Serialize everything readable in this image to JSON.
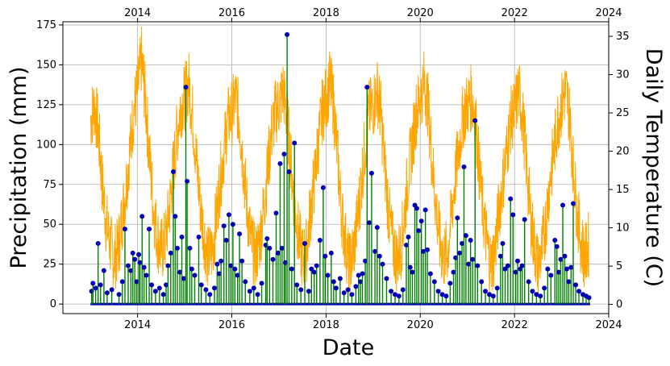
{
  "chart_data": {
    "type": "line",
    "xlabel": "Date",
    "ylabel": "Precipitation (mm)",
    "y2label": "Daily Temperature (C)",
    "x_axis_kind": "date",
    "xlim": [
      "2012-06-01",
      "2024-01-01"
    ],
    "ylim": [
      -6,
      177
    ],
    "y2lim": [
      -1.2,
      36.9
    ],
    "grid": true,
    "x_ticks": [
      "2014",
      "2016",
      "2018",
      "2020",
      "2022",
      "2024"
    ],
    "x_top_ticks": [
      "2014",
      "2016",
      "2018",
      "2020",
      "2022",
      "2024"
    ],
    "y_ticks": [
      "0",
      "25",
      "50",
      "75",
      "100",
      "125",
      "150",
      "175"
    ],
    "y2_ticks": [
      "0",
      "5",
      "10",
      "15",
      "20",
      "25",
      "30",
      "35"
    ],
    "colors": {
      "precipitation_stem": "#008000",
      "precipitation_marker": "#0000b4",
      "temperature": "#ffa500"
    },
    "series": [
      {
        "kind": "temperature-line",
        "axis": "y2",
        "x": [
          "2013-01-01",
          "2013-02-01",
          "2013-03-01",
          "2013-04-01",
          "2013-05-01",
          "2013-06-01",
          "2013-07-01",
          "2013-08-01",
          "2013-09-01",
          "2013-10-01",
          "2013-11-01",
          "2013-12-01",
          "2014-01-01",
          "2014-02-01",
          "2014-03-01",
          "2014-04-01",
          "2014-05-01",
          "2014-06-01",
          "2014-07-01",
          "2014-08-01",
          "2014-09-01",
          "2014-10-01",
          "2014-11-01",
          "2014-12-01",
          "2015-01-01",
          "2015-02-01",
          "2015-03-01",
          "2015-04-01",
          "2015-05-01",
          "2015-06-01",
          "2015-07-01",
          "2015-08-01",
          "2015-09-01",
          "2015-10-01",
          "2015-11-01",
          "2015-12-01",
          "2016-01-01",
          "2016-02-01",
          "2016-03-01",
          "2016-04-01",
          "2016-05-01",
          "2016-06-01",
          "2016-07-01",
          "2016-08-01",
          "2016-09-01",
          "2016-10-01",
          "2016-11-01",
          "2016-12-01",
          "2017-01-01",
          "2017-02-01",
          "2017-03-01",
          "2017-04-01",
          "2017-05-01",
          "2017-06-01",
          "2017-07-01",
          "2017-08-01",
          "2017-09-01",
          "2017-10-01",
          "2017-11-01",
          "2017-12-01",
          "2018-01-01",
          "2018-02-01",
          "2018-03-01",
          "2018-04-01",
          "2018-05-01",
          "2018-06-01",
          "2018-07-01",
          "2018-08-01",
          "2018-09-01",
          "2018-10-01",
          "2018-11-01",
          "2018-12-01",
          "2019-01-01",
          "2019-02-01",
          "2019-03-01",
          "2019-04-01",
          "2019-05-01",
          "2019-06-01",
          "2019-07-01",
          "2019-08-01",
          "2019-09-01",
          "2019-10-01",
          "2019-11-01",
          "2019-12-01",
          "2020-01-01",
          "2020-02-01",
          "2020-03-01",
          "2020-04-01",
          "2020-05-01",
          "2020-06-01",
          "2020-07-01",
          "2020-08-01",
          "2020-09-01",
          "2020-10-01",
          "2020-11-01",
          "2020-12-01",
          "2021-01-01",
          "2021-02-01",
          "2021-03-01",
          "2021-04-01",
          "2021-05-01",
          "2021-06-01",
          "2021-07-01",
          "2021-08-01",
          "2021-09-01",
          "2021-10-01",
          "2021-11-01",
          "2021-12-01",
          "2022-01-01",
          "2022-02-01",
          "2022-03-01",
          "2022-04-01",
          "2022-05-01",
          "2022-06-01",
          "2022-07-01",
          "2022-08-01",
          "2022-09-01",
          "2022-10-01",
          "2022-11-01",
          "2022-12-01",
          "2023-01-01",
          "2023-02-01",
          "2023-03-01",
          "2023-04-01",
          "2023-05-01",
          "2023-06-01",
          "2023-07-01",
          "2023-08-01"
        ],
        "values": [
          24,
          26,
          23,
          16,
          11,
          8,
          6,
          7,
          11,
          15,
          20,
          25,
          28,
          32,
          27,
          20,
          13,
          9,
          7,
          8,
          12,
          17,
          22,
          26,
          27,
          29,
          25,
          19,
          13,
          9,
          6,
          7,
          11,
          16,
          20,
          24,
          25,
          27,
          24,
          18,
          12,
          8,
          6,
          8,
          12,
          17,
          22,
          25,
          26,
          28,
          25,
          19,
          13,
          9,
          6,
          7,
          12,
          16,
          21,
          25,
          27,
          29,
          26,
          19,
          12,
          8,
          5,
          7,
          11,
          16,
          21,
          25,
          26,
          28,
          25,
          18,
          12,
          8,
          6,
          7,
          12,
          17,
          21,
          25,
          27,
          29,
          26,
          19,
          13,
          8,
          6,
          7,
          12,
          17,
          21,
          25,
          26,
          27,
          25,
          18,
          12,
          8,
          5,
          7,
          12,
          16,
          20,
          24,
          25,
          28,
          25,
          19,
          12,
          8,
          5,
          7,
          11,
          16,
          20,
          24,
          26,
          28,
          25,
          18,
          12,
          8,
          6,
          8
        ]
      },
      {
        "kind": "precipitation-stems",
        "axis": "y",
        "points": [
          [
            "2013-01-10",
            8
          ],
          [
            "2013-01-20",
            13
          ],
          [
            "2013-02-10",
            10
          ],
          [
            "2013-03-01",
            38
          ],
          [
            "2013-03-20",
            12
          ],
          [
            "2013-04-15",
            21
          ],
          [
            "2013-05-10",
            7
          ],
          [
            "2013-06-15",
            9
          ],
          [
            "2013-08-10",
            6
          ],
          [
            "2013-09-05",
            14
          ],
          [
            "2013-09-25",
            47
          ],
          [
            "2013-10-20",
            24
          ],
          [
            "2013-11-10",
            21
          ],
          [
            "2013-11-25",
            32
          ],
          [
            "2013-12-10",
            28
          ],
          [
            "2013-12-25",
            14
          ],
          [
            "2014-01-10",
            31
          ],
          [
            "2014-01-20",
            26
          ],
          [
            "2014-02-05",
            55
          ],
          [
            "2014-02-20",
            23
          ],
          [
            "2014-03-10",
            18
          ],
          [
            "2014-04-01",
            47
          ],
          [
            "2014-04-20",
            12
          ],
          [
            "2014-05-20",
            8
          ],
          [
            "2014-06-20",
            10
          ],
          [
            "2014-07-20",
            6
          ],
          [
            "2014-08-10",
            12
          ],
          [
            "2014-08-25",
            24
          ],
          [
            "2014-09-15",
            32
          ],
          [
            "2014-10-05",
            83
          ],
          [
            "2014-10-20",
            55
          ],
          [
            "2014-11-05",
            35
          ],
          [
            "2014-11-25",
            20
          ],
          [
            "2014-12-10",
            42
          ],
          [
            "2014-12-25",
            16
          ],
          [
            "2015-01-10",
            136
          ],
          [
            "2015-01-20",
            77
          ],
          [
            "2015-02-10",
            35
          ],
          [
            "2015-02-25",
            22
          ],
          [
            "2015-03-20",
            18
          ],
          [
            "2015-04-20",
            42
          ],
          [
            "2015-05-10",
            12
          ],
          [
            "2015-06-15",
            9
          ],
          [
            "2015-07-15",
            6
          ],
          [
            "2015-08-20",
            10
          ],
          [
            "2015-09-10",
            25
          ],
          [
            "2015-09-25",
            19
          ],
          [
            "2015-10-10",
            27
          ],
          [
            "2015-11-01",
            49
          ],
          [
            "2015-11-20",
            40
          ],
          [
            "2015-12-10",
            56
          ],
          [
            "2015-12-25",
            24
          ],
          [
            "2016-01-10",
            50
          ],
          [
            "2016-01-25",
            22
          ],
          [
            "2016-02-15",
            18
          ],
          [
            "2016-03-01",
            44
          ],
          [
            "2016-03-20",
            27
          ],
          [
            "2016-04-15",
            14
          ],
          [
            "2016-05-20",
            8
          ],
          [
            "2016-06-20",
            10
          ],
          [
            "2016-07-20",
            6
          ],
          [
            "2016-08-20",
            13
          ],
          [
            "2016-09-20",
            37
          ],
          [
            "2016-10-01",
            41
          ],
          [
            "2016-10-20",
            35
          ],
          [
            "2016-11-15",
            28
          ],
          [
            "2016-12-10",
            57
          ],
          [
            "2016-12-25",
            32
          ],
          [
            "2017-01-10",
            88
          ],
          [
            "2017-01-25",
            35
          ],
          [
            "2017-02-10",
            94
          ],
          [
            "2017-02-20",
            26
          ],
          [
            "2017-03-05",
            169
          ],
          [
            "2017-03-20",
            83
          ],
          [
            "2017-04-10",
            22
          ],
          [
            "2017-05-01",
            101
          ],
          [
            "2017-05-20",
            12
          ],
          [
            "2017-06-20",
            9
          ],
          [
            "2017-07-20",
            38
          ],
          [
            "2017-08-20",
            8
          ],
          [
            "2017-09-10",
            22
          ],
          [
            "2017-10-01",
            20
          ],
          [
            "2017-10-20",
            24
          ],
          [
            "2017-11-15",
            40
          ],
          [
            "2017-12-10",
            73
          ],
          [
            "2017-12-25",
            30
          ],
          [
            "2018-01-15",
            18
          ],
          [
            "2018-02-10",
            32
          ],
          [
            "2018-03-01",
            14
          ],
          [
            "2018-03-20",
            10
          ],
          [
            "2018-04-20",
            16
          ],
          [
            "2018-05-20",
            7
          ],
          [
            "2018-06-20",
            9
          ],
          [
            "2018-07-20",
            6
          ],
          [
            "2018-08-20",
            11
          ],
          [
            "2018-09-10",
            18
          ],
          [
            "2018-09-25",
            14
          ],
          [
            "2018-10-10",
            19
          ],
          [
            "2018-11-01",
            27
          ],
          [
            "2018-11-15",
            136
          ],
          [
            "2018-12-01",
            51
          ],
          [
            "2018-12-20",
            82
          ],
          [
            "2019-01-15",
            33
          ],
          [
            "2019-02-01",
            48
          ],
          [
            "2019-02-20",
            30
          ],
          [
            "2019-03-15",
            25
          ],
          [
            "2019-04-15",
            16
          ],
          [
            "2019-05-20",
            8
          ],
          [
            "2019-06-20",
            6
          ],
          [
            "2019-07-20",
            5
          ],
          [
            "2019-08-20",
            9
          ],
          [
            "2019-09-15",
            37
          ],
          [
            "2019-10-01",
            42
          ],
          [
            "2019-10-15",
            23
          ],
          [
            "2019-11-01",
            20
          ],
          [
            "2019-11-20",
            62
          ],
          [
            "2019-12-05",
            60
          ],
          [
            "2019-12-20",
            46
          ],
          [
            "2020-01-10",
            52
          ],
          [
            "2020-01-25",
            33
          ],
          [
            "2020-02-10",
            59
          ],
          [
            "2020-02-25",
            34
          ],
          [
            "2020-03-20",
            19
          ],
          [
            "2020-04-20",
            14
          ],
          [
            "2020-05-20",
            8
          ],
          [
            "2020-06-20",
            6
          ],
          [
            "2020-07-20",
            5
          ],
          [
            "2020-08-20",
            13
          ],
          [
            "2020-09-15",
            20
          ],
          [
            "2020-10-01",
            29
          ],
          [
            "2020-10-15",
            54
          ],
          [
            "2020-11-01",
            32
          ],
          [
            "2020-11-20",
            38
          ],
          [
            "2020-12-05",
            86
          ],
          [
            "2020-12-20",
            43
          ],
          [
            "2021-01-10",
            25
          ],
          [
            "2021-01-25",
            40
          ],
          [
            "2021-02-10",
            28
          ],
          [
            "2021-03-01",
            115
          ],
          [
            "2021-03-20",
            24
          ],
          [
            "2021-04-20",
            14
          ],
          [
            "2021-05-20",
            8
          ],
          [
            "2021-06-20",
            6
          ],
          [
            "2021-07-20",
            5
          ],
          [
            "2021-08-20",
            10
          ],
          [
            "2021-09-15",
            30
          ],
          [
            "2021-10-01",
            38
          ],
          [
            "2021-10-20",
            22
          ],
          [
            "2021-11-10",
            24
          ],
          [
            "2021-12-01",
            66
          ],
          [
            "2021-12-20",
            56
          ],
          [
            "2022-01-10",
            20
          ],
          [
            "2022-01-25",
            27
          ],
          [
            "2022-02-15",
            22
          ],
          [
            "2022-03-01",
            24
          ],
          [
            "2022-03-20",
            53
          ],
          [
            "2022-04-20",
            14
          ],
          [
            "2022-05-20",
            8
          ],
          [
            "2022-06-20",
            6
          ],
          [
            "2022-07-20",
            5
          ],
          [
            "2022-08-20",
            10
          ],
          [
            "2022-09-15",
            22
          ],
          [
            "2022-10-10",
            18
          ],
          [
            "2022-11-10",
            40
          ],
          [
            "2022-11-25",
            36
          ],
          [
            "2022-12-10",
            20
          ],
          [
            "2022-12-25",
            28
          ],
          [
            "2023-01-10",
            62
          ],
          [
            "2023-01-25",
            30
          ],
          [
            "2023-02-10",
            22
          ],
          [
            "2023-02-25",
            14
          ],
          [
            "2023-03-15",
            23
          ],
          [
            "2023-04-01",
            63
          ],
          [
            "2023-04-20",
            12
          ],
          [
            "2023-05-15",
            8
          ],
          [
            "2023-06-15",
            6
          ],
          [
            "2023-07-10",
            5
          ],
          [
            "2023-08-01",
            4
          ]
        ]
      }
    ]
  }
}
